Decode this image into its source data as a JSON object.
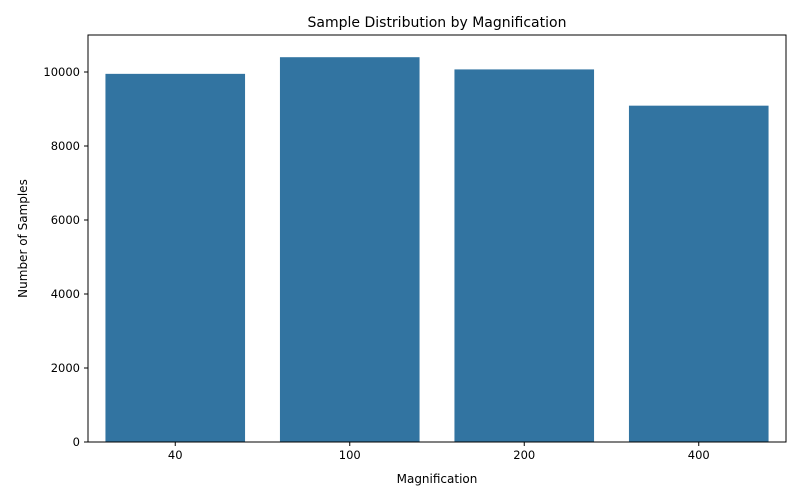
{
  "chart_data": {
    "type": "bar",
    "title": "Sample Distribution by Magnification",
    "xlabel": "Magnification",
    "ylabel": "Number of Samples",
    "categories": [
      "40",
      "100",
      "200",
      "400"
    ],
    "values": [
      9950,
      10400,
      10070,
      9090
    ],
    "ylim": [
      0,
      11000
    ],
    "yticks": [
      0,
      2000,
      4000,
      6000,
      8000,
      10000
    ],
    "grid": false,
    "legend": "none",
    "colors": {
      "bar": "#3274a1",
      "axis": "#000000"
    }
  }
}
